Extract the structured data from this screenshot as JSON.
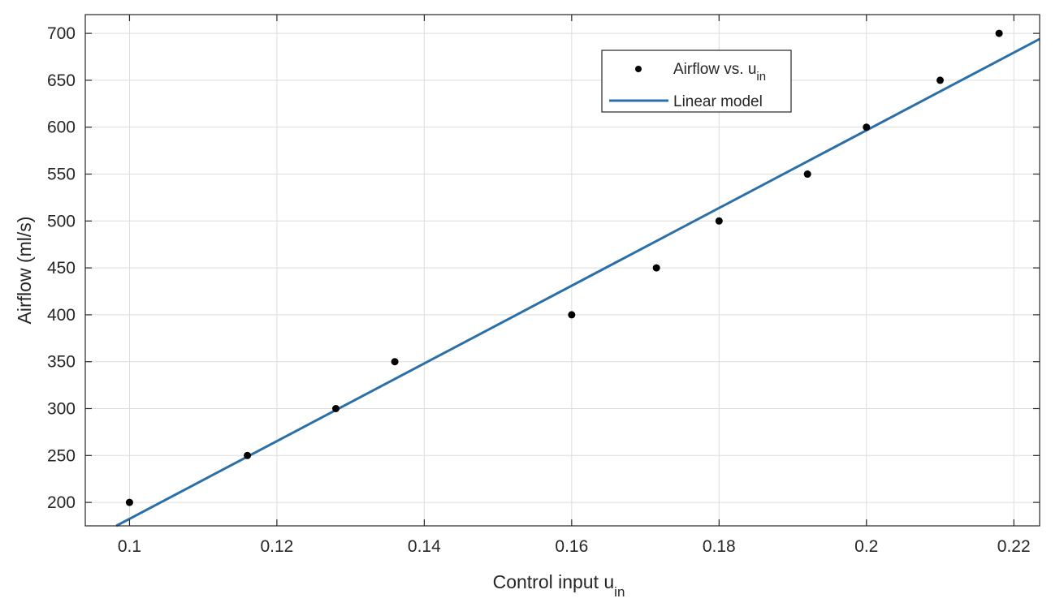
{
  "chart_data": {
    "type": "scatter",
    "xlabel": "Control input u",
    "xlabel_sub": "in",
    "ylabel": "Airflow (ml/s)",
    "xlim": [
      0.094,
      0.2235
    ],
    "ylim": [
      175,
      720
    ],
    "x_ticks": [
      0.1,
      0.12,
      0.14,
      0.16,
      0.18,
      0.2,
      0.22
    ],
    "x_tick_labels": [
      "0.1",
      "0.12",
      "0.14",
      "0.16",
      "0.18",
      "0.2",
      "0.22"
    ],
    "y_ticks": [
      200,
      250,
      300,
      350,
      400,
      450,
      500,
      550,
      600,
      650,
      700
    ],
    "y_tick_labels": [
      "200",
      "250",
      "300",
      "350",
      "400",
      "450",
      "500",
      "550",
      "600",
      "650",
      "700"
    ],
    "grid": true,
    "legend_position": "top-right",
    "series": [
      {
        "name": "Airflow vs. u",
        "name_sub": "in",
        "kind": "scatter",
        "color": "#000000",
        "x": [
          0.1,
          0.116,
          0.128,
          0.136,
          0.16,
          0.1715,
          0.18,
          0.192,
          0.2,
          0.21,
          0.218
        ],
        "y": [
          200,
          250,
          300,
          350,
          400,
          450,
          500,
          550,
          600,
          650,
          700
        ]
      },
      {
        "name": "Linear model",
        "kind": "line",
        "color": "#2a6fa8",
        "x": [
          0.0982,
          0.2235
        ],
        "y": [
          175,
          694
        ]
      }
    ]
  }
}
